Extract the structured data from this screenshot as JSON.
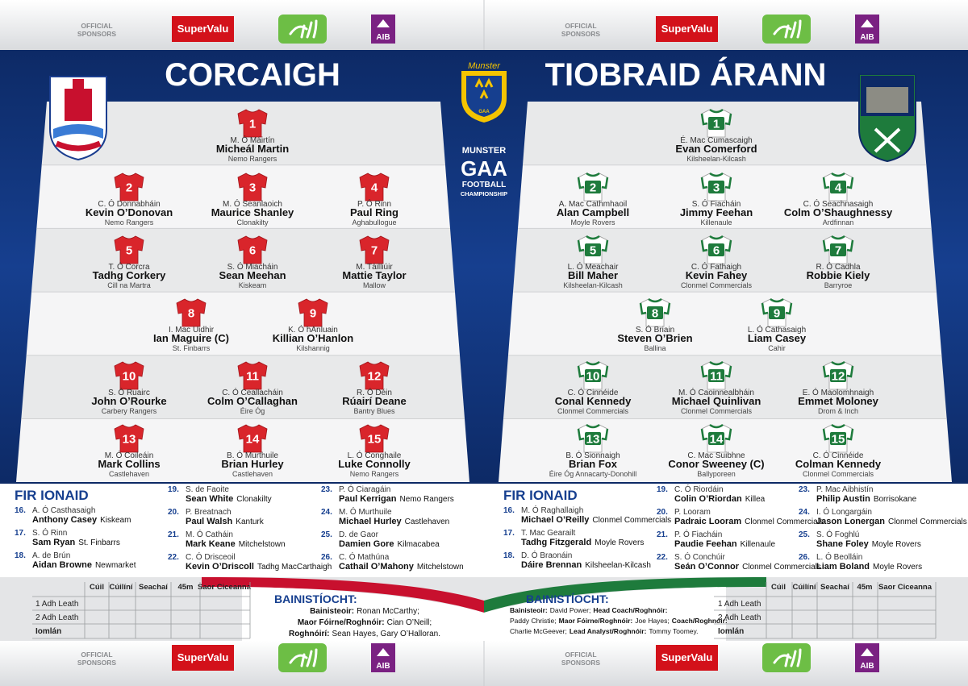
{
  "sponsors": {
    "label_lines": [
      "OFFICIAL",
      "SPONSORS"
    ],
    "supervalu": "SuperValu",
    "aib": "AIB"
  },
  "competition": {
    "munster": "Munster",
    "gaa_small": "GAA",
    "lines": [
      "MUNSTER",
      "GAA",
      "FOOTBALL",
      "CHAMPIONSHIP"
    ]
  },
  "subs_title": "FIR IONAID",
  "management_title": "BAINISTÍOCHT:",
  "score_table": {
    "columns": [
      "Cúil",
      "Cúilíní",
      "Seachaí",
      "45m",
      "Saor Ciceanna"
    ],
    "rows": [
      "1 Adh Leath",
      "2 Adh Leath",
      "Iomlán"
    ]
  },
  "teams": [
    {
      "name": "CORCAIGH",
      "jersey_color": "#d9252b",
      "number_color": "#ffffff",
      "players": [
        {
          "number": 1,
          "irish": "M. Ó Máirtín",
          "name": "Micheál Martin",
          "club": "Nemo Rangers"
        },
        {
          "number": 2,
          "irish": "C. Ó Donnabháin",
          "name": "Kevin O’Donovan",
          "club": "Nemo Rangers"
        },
        {
          "number": 3,
          "irish": "M. Ó Seanlaoich",
          "name": "Maurice Shanley",
          "club": "Clonakilty"
        },
        {
          "number": 4,
          "irish": "P. Ó Rinn",
          "name": "Paul Ring",
          "club": "Aghabullogue"
        },
        {
          "number": 5,
          "irish": "T. Ó Corcra",
          "name": "Tadhg Corkery",
          "club": "Cill na Martra"
        },
        {
          "number": 6,
          "irish": "S. Ó Miacháin",
          "name": "Sean Meehan",
          "club": "Kiskeam"
        },
        {
          "number": 7,
          "irish": "M. Táilliúir",
          "name": "Mattie Taylor",
          "club": "Mallow"
        },
        {
          "number": 8,
          "irish": "I. Mac Uidhir",
          "name": "Ian Maguire (C)",
          "club": "St. Finbarrs"
        },
        {
          "number": 9,
          "irish": "K. Ó hAnluain",
          "name": "Killian O’Hanlon",
          "club": "Kilshannig"
        },
        {
          "number": 10,
          "irish": "S. Ó Ruairc",
          "name": "John O’Rourke",
          "club": "Carbery Rangers"
        },
        {
          "number": 11,
          "irish": "C. Ó Ceallacháin",
          "name": "Colm O’Callaghan",
          "club": "Éire Óg"
        },
        {
          "number": 12,
          "irish": "R. Ó Déin",
          "name": "Rúairí Deane",
          "club": "Bantry Blues"
        },
        {
          "number": 13,
          "irish": "M. Ó Coileáin",
          "name": "Mark Collins",
          "club": "Castlehaven"
        },
        {
          "number": 14,
          "irish": "B. Ó Murthuile",
          "name": "Brian Hurley",
          "club": "Castlehaven"
        },
        {
          "number": 15,
          "irish": "L. Ó Conghaile",
          "name": "Luke Connolly",
          "club": "Nemo Rangers"
        }
      ],
      "subs": [
        {
          "number": "16.",
          "irish": "A. Ó Casthasaigh",
          "name": "Anthony Casey",
          "club": "Kiskeam"
        },
        {
          "number": "17.",
          "irish": "S. Ó Rinn",
          "name": "Sam Ryan",
          "club": "St. Finbarrs"
        },
        {
          "number": "18.",
          "irish": "A. de Brún",
          "name": "Aidan Browne",
          "club": "Newmarket"
        },
        {
          "number": "19.",
          "irish": "S. de Faoite",
          "name": "Sean White",
          "club": "Clonakilty"
        },
        {
          "number": "20.",
          "irish": "P. Breatnach",
          "name": "Paul Walsh",
          "club": "Kanturk"
        },
        {
          "number": "21.",
          "irish": "M. Ó Catháin",
          "name": "Mark Keane",
          "club": "Mitchelstown"
        },
        {
          "number": "22.",
          "irish": "C. Ó Drisceoil",
          "name": "Kevin O’Driscoll",
          "club": "Tadhg MacCarthaigh"
        },
        {
          "number": "23.",
          "irish": "P. Ó Ciaragáin",
          "name": "Paul Kerrigan",
          "club": "Nemo Rangers"
        },
        {
          "number": "24.",
          "irish": "M. Ó Murthuile",
          "name": "Michael Hurley",
          "club": "Castlehaven"
        },
        {
          "number": "25.",
          "irish": "D. de Gaor",
          "name": "Damien Gore",
          "club": "Kilmacabea"
        },
        {
          "number": "26.",
          "irish": "C. Ó Mathúna",
          "name": "Cathail O’Mahony",
          "club": "Mitchelstown"
        }
      ],
      "management": [
        [
          {
            "text": "Bainisteoir:",
            "bold": true
          },
          {
            "text": "Ronan McCarthy;",
            "bold": false
          }
        ],
        [
          {
            "text": "Maor Fóirne/Roghnóir:",
            "bold": true
          },
          {
            "text": "Cian O’Neill;",
            "bold": false
          }
        ],
        [
          {
            "text": "Roghnóirí:",
            "bold": true
          },
          {
            "text": "Sean Hayes, Gary O’Halloran.",
            "bold": false
          }
        ]
      ]
    },
    {
      "name": "TIOBRAID ÁRANN",
      "jersey_color": "#ffffff",
      "number_color": "#ffffff",
      "number_box": "#1e7b3c",
      "players": [
        {
          "number": 1,
          "irish": "É. Mac Cumascaigh",
          "name": "Evan Comerford",
          "club": "Kilsheelan-Kilcash"
        },
        {
          "number": 2,
          "irish": "A. Mac Cathmhaoil",
          "name": "Alan Campbell",
          "club": "Moyle Rovers"
        },
        {
          "number": 3,
          "irish": "S. Ó Fiacháin",
          "name": "Jimmy Feehan",
          "club": "Killenaule"
        },
        {
          "number": 4,
          "irish": "C. Ó Seachnasaigh",
          "name": "Colm O’Shaughnessy",
          "club": "Ardfinnan"
        },
        {
          "number": 5,
          "irish": "L. Ó Meachair",
          "name": "Bill Maher",
          "club": "Kilsheelan-Kilcash"
        },
        {
          "number": 6,
          "irish": "C. Ó Fathaigh",
          "name": "Kevin Fahey",
          "club": "Clonmel Commercials"
        },
        {
          "number": 7,
          "irish": "R. Ó Cadhla",
          "name": "Robbie Kiely",
          "club": "Barryroe"
        },
        {
          "number": 8,
          "irish": "S. Ó Briain",
          "name": "Steven O’Brien",
          "club": "Ballina"
        },
        {
          "number": 9,
          "irish": "L. Ó Cathasaigh",
          "name": "Liam Casey",
          "club": "Cahir"
        },
        {
          "number": 10,
          "irish": "C. Ó Cinnéide",
          "name": "Conal Kennedy",
          "club": "Clonmel Commercials"
        },
        {
          "number": 11,
          "irish": "M. Ó Caoinnealbháin",
          "name": "Michael Quinlivan",
          "club": "Clonmel Commercials"
        },
        {
          "number": 12,
          "irish": "E. Ó Maolomhnaigh",
          "name": "Emmet Moloney",
          "club": "Drom & Inch"
        },
        {
          "number": 13,
          "irish": "B. Ó Sionnaigh",
          "name": "Brian Fox",
          "club": "Éire Óg Annacarty-Donohill"
        },
        {
          "number": 14,
          "irish": "C. Mac Suibhne",
          "name": "Conor Sweeney (C)",
          "club": "Ballyporeen"
        },
        {
          "number": 15,
          "irish": "C. Ó Cinnéide",
          "name": "Colman Kennedy",
          "club": "Clonmel Commercials"
        }
      ],
      "subs": [
        {
          "number": "16.",
          "irish": "M. Ó Raghallaigh",
          "name": "Michael O’Reilly",
          "club": "Clonmel Commercials"
        },
        {
          "number": "17.",
          "irish": "T. Mac Gearailt",
          "name": "Tadhg Fitzgerald",
          "club": "Moyle Rovers"
        },
        {
          "number": "18.",
          "irish": "D. Ó Braonáin",
          "name": "Dáire Brennan",
          "club": "Kilsheelan-Kilcash"
        },
        {
          "number": "19.",
          "irish": "C. Ó Riordáin",
          "name": "Colin O’Riordan",
          "club": "Killea"
        },
        {
          "number": "20.",
          "irish": "P. Looram",
          "name": "Padraic Looram",
          "club": "Clonmel Commercials"
        },
        {
          "number": "21.",
          "irish": "P. Ó Fiacháin",
          "name": "Paudie Feehan",
          "club": "Killenaule"
        },
        {
          "number": "22.",
          "irish": "S. Ó Conchúir",
          "name": "Seán O’Connor",
          "club": "Clonmel Commercials"
        },
        {
          "number": "23.",
          "irish": "P. Mac Aibhistín",
          "name": "Philip Austin",
          "club": "Borrisokane"
        },
        {
          "number": "24.",
          "irish": "I. Ó Longargáin",
          "name": "Jason Lonergan",
          "club": "Clonmel Commercials"
        },
        {
          "number": "25.",
          "irish": "S. Ó Foghlú",
          "name": "Shane Foley",
          "club": "Moyle Rovers"
        },
        {
          "number": "26.",
          "irish": "L. Ó Beolláin",
          "name": "Liam Boland",
          "club": "Moyle Rovers"
        }
      ],
      "management": [
        [
          {
            "text": "Bainisteoir:",
            "bold": true
          },
          {
            "text": "David Power;",
            "bold": false
          },
          {
            "text": "Head Coach/Roghnóir:",
            "bold": true
          }
        ],
        [
          {
            "text": "Paddy Christie;",
            "bold": false
          },
          {
            "text": "Maor Fóirne/Roghnóir:",
            "bold": true
          },
          {
            "text": "Joe Hayes;",
            "bold": false
          },
          {
            "text": "Coach/Roghnóir:",
            "bold": true
          }
        ],
        [
          {
            "text": "Charlie McGeever;",
            "bold": false
          },
          {
            "text": "Lead Analyst/Roghnóir:",
            "bold": true
          },
          {
            "text": "Tommy Toomey.",
            "bold": false
          }
        ]
      ]
    }
  ]
}
